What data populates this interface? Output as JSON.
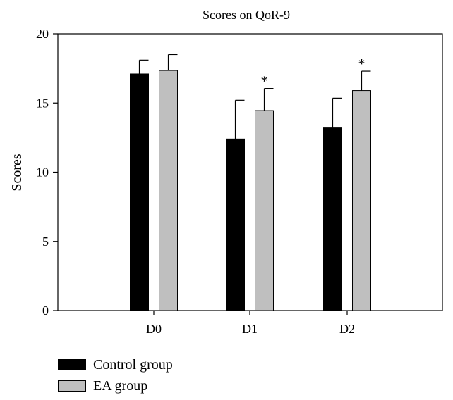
{
  "chart_data": {
    "type": "bar",
    "title": "Scores on QoR-9",
    "xlabel": "",
    "ylabel": "Scores",
    "ylim": [
      0,
      20
    ],
    "yticks": [
      "0",
      "5",
      "10",
      "15",
      "20"
    ],
    "categories": [
      "D0",
      "D1",
      "D2"
    ],
    "series": [
      {
        "name": "Control group",
        "color": "#000000",
        "values": [
          17.1,
          12.4,
          13.2
        ],
        "errors": [
          1.0,
          2.8,
          2.15
        ]
      },
      {
        "name": "EA group",
        "color": "#bfbfbf",
        "values": [
          17.35,
          14.45,
          15.9
        ],
        "errors": [
          1.15,
          1.6,
          1.4
        ]
      }
    ],
    "annotations": [
      {
        "category": "D1",
        "series": "EA group",
        "text": "*"
      },
      {
        "category": "D2",
        "series": "EA group",
        "text": "*"
      }
    ],
    "legend_position": "bottom-left",
    "grid": false
  }
}
